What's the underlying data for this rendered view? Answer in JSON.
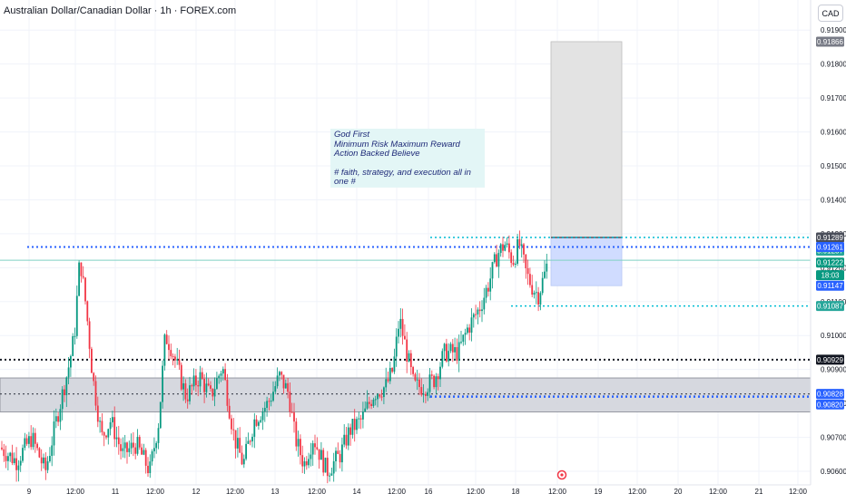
{
  "header": {
    "title": "Australian Dollar/Canadian Dollar · 1h · FOREX.com",
    "unit": "CAD"
  },
  "note": {
    "lines": [
      "God First",
      "Minimum Risk Maximum Reward",
      "Action Backed Believe"
    ],
    "lines2": [
      "# faith, strategy, and execution all in",
      "one #"
    ]
  },
  "chart_data": {
    "type": "candlestick",
    "title": "Australian Dollar/Canadian Dollar · 1h · FOREX.com",
    "currency": "CAD",
    "ylim": [
      0.9056,
      0.9193
    ],
    "y_ticks": [
      0.906,
      0.907,
      0.908,
      0.909,
      0.91,
      0.911,
      0.912,
      0.913,
      0.914,
      0.915,
      0.916,
      0.917,
      0.918,
      0.919
    ],
    "y_tick_labels": [
      "0.90600",
      "0.90700",
      "0.90800",
      "0.90900",
      "0.91000",
      "0.91100",
      "0.91200",
      "0.91300",
      "0.91400",
      "0.91500",
      "0.91600",
      "0.91700",
      "0.91800",
      "0.91900"
    ],
    "x_ticks": [
      {
        "label": "9",
        "x": 32
      },
      {
        "label": "12:00",
        "x": 83
      },
      {
        "label": "11",
        "x": 127
      },
      {
        "label": "12:00",
        "x": 171
      },
      {
        "label": "12",
        "x": 216
      },
      {
        "label": "12:00",
        "x": 259
      },
      {
        "label": "13",
        "x": 303
      },
      {
        "label": "12:00",
        "x": 349
      },
      {
        "label": "14",
        "x": 393
      },
      {
        "label": "12:00",
        "x": 437
      },
      {
        "label": "16",
        "x": 472
      },
      {
        "label": "12:00",
        "x": 524
      },
      {
        "label": "18",
        "x": 568
      },
      {
        "label": "12:00",
        "x": 614
      },
      {
        "label": "19",
        "x": 659
      },
      {
        "label": "12:00",
        "x": 702
      },
      {
        "label": "20",
        "x": 747
      },
      {
        "label": "12:00",
        "x": 791
      },
      {
        "label": "21",
        "x": 836
      },
      {
        "label": "12:00",
        "x": 879
      }
    ],
    "price_labels": [
      {
        "value": "0.91866",
        "price": 0.91866,
        "color": "#787b86"
      },
      {
        "value": "0.91289",
        "price": 0.91289,
        "color": "#4a4e5a"
      },
      {
        "value": "0.91287",
        "price": 0.9125,
        "color": "#26a69a"
      },
      {
        "value": "0.91261",
        "price": 0.91261,
        "color": "#2962ff"
      },
      {
        "value": "0.91222",
        "price": 0.91215,
        "color": "#089981"
      },
      {
        "value": "18:03",
        "price": 0.91178,
        "color": "#089981"
      },
      {
        "value": "0.91147",
        "price": 0.91147,
        "color": "#2962ff"
      },
      {
        "value": "0.91087",
        "price": 0.91087,
        "color": "#26a69a"
      },
      {
        "value": "0.90929",
        "price": 0.90929,
        "color": "#131722"
      },
      {
        "value": "0.90828",
        "price": 0.90828,
        "color": "#2962ff"
      },
      {
        "value": "0.90820",
        "price": 0.90797,
        "color": "#2962ff"
      }
    ],
    "levels": {
      "resistance_blue": 0.91261,
      "last_price": 0.91222,
      "black_dotted": 0.90929,
      "zone_low": 0.90775,
      "zone_high": 0.90875,
      "zone_mid": 0.90828,
      "cyan_top": 0.91289,
      "cyan_low": 0.91087,
      "blue_dotted_low": 0.9082
    },
    "position": {
      "entry": 0.91289,
      "target": 0.91866,
      "stop": 0.91147
    },
    "colors": {
      "up": "#089981",
      "down": "#f23645",
      "grid": "#f0f3fa"
    }
  }
}
